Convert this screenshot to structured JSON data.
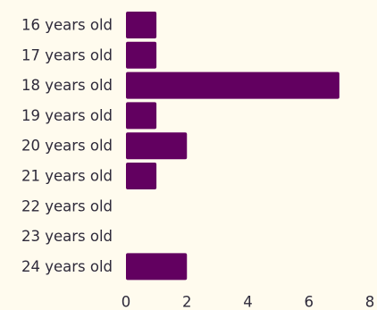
{
  "chart_data": {
    "type": "bar",
    "orientation": "horizontal",
    "categories": [
      "16 years old",
      "17 years old",
      "18 years old",
      "19 years old",
      "20 years old",
      "21 years old",
      "22 years old",
      "23 years old",
      "24 years old"
    ],
    "values": [
      1,
      1,
      7,
      1,
      2,
      1,
      0,
      0,
      2
    ],
    "xticks": [
      "0",
      "2",
      "4",
      "6",
      "8"
    ],
    "xlim": [
      0,
      8
    ],
    "grid": false,
    "legend": "none",
    "title": "",
    "xlabel": "",
    "ylabel": ""
  },
  "colors": {
    "bar": "#620060",
    "background": "#fffbee",
    "text": "#2e2a3a"
  }
}
